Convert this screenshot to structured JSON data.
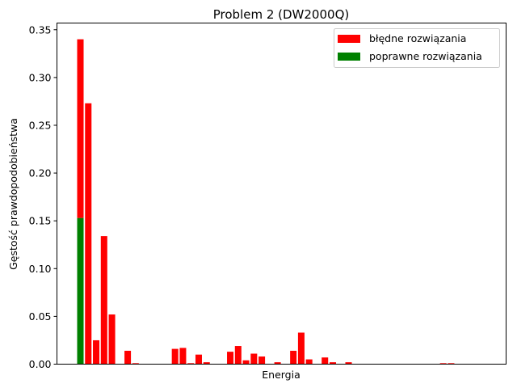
{
  "chart_data": {
    "type": "bar",
    "stacked": true,
    "title": "Problem 2 (DW2000Q)",
    "xlabel": "Energia",
    "ylabel": "Gęstość prawdopodobieństwa",
    "ylim": [
      0,
      0.357
    ],
    "yticks": [
      0.0,
      0.05,
      0.1,
      0.15,
      0.2,
      0.25,
      0.3,
      0.35
    ],
    "ytick_labels": [
      "0.00",
      "0.05",
      "0.10",
      "0.15",
      "0.20",
      "0.25",
      "0.30",
      "0.35"
    ],
    "bin_count": 52,
    "legend_position": "top-right",
    "series": [
      {
        "name": "poprawne rozwiązania",
        "color": "#008000",
        "points": [
          {
            "bin": 0,
            "value": 0.153
          }
        ]
      },
      {
        "name": "błędne rozwiązania",
        "color": "#ff0000",
        "points": [
          {
            "bin": 0,
            "value": 0.187
          },
          {
            "bin": 1,
            "value": 0.273
          },
          {
            "bin": 2,
            "value": 0.025
          },
          {
            "bin": 3,
            "value": 0.134
          },
          {
            "bin": 4,
            "value": 0.052
          },
          {
            "bin": 6,
            "value": 0.014
          },
          {
            "bin": 7,
            "value": 0.001
          },
          {
            "bin": 12,
            "value": 0.016
          },
          {
            "bin": 13,
            "value": 0.017
          },
          {
            "bin": 14,
            "value": 0.001
          },
          {
            "bin": 15,
            "value": 0.01
          },
          {
            "bin": 16,
            "value": 0.002
          },
          {
            "bin": 19,
            "value": 0.013
          },
          {
            "bin": 20,
            "value": 0.019
          },
          {
            "bin": 21,
            "value": 0.004
          },
          {
            "bin": 22,
            "value": 0.011
          },
          {
            "bin": 23,
            "value": 0.008
          },
          {
            "bin": 25,
            "value": 0.002
          },
          {
            "bin": 27,
            "value": 0.014
          },
          {
            "bin": 28,
            "value": 0.033
          },
          {
            "bin": 29,
            "value": 0.005
          },
          {
            "bin": 31,
            "value": 0.007
          },
          {
            "bin": 32,
            "value": 0.002
          },
          {
            "bin": 34,
            "value": 0.002
          },
          {
            "bin": 46,
            "value": 0.001
          },
          {
            "bin": 47,
            "value": 0.001
          }
        ]
      }
    ],
    "legend": [
      {
        "label": "błędne rozwiązania",
        "color": "#ff0000"
      },
      {
        "label": "poprawne rozwiązania",
        "color": "#008000"
      }
    ]
  }
}
